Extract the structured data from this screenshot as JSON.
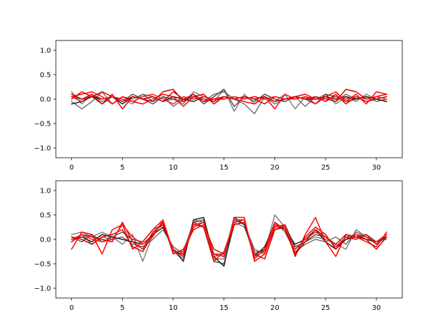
{
  "chart_data": [
    {
      "type": "line",
      "x": [
        0,
        1,
        2,
        3,
        4,
        5,
        6,
        7,
        8,
        9,
        10,
        11,
        12,
        13,
        14,
        15,
        16,
        17,
        18,
        19,
        20,
        21,
        22,
        23,
        24,
        25,
        26,
        27,
        28,
        29,
        30,
        31
      ],
      "xlim": [
        -1.55,
        32.55
      ],
      "ylim": [
        -1.2,
        1.2
      ],
      "xticks": [
        0,
        5,
        10,
        15,
        20,
        25,
        30
      ],
      "yticks": [
        -1.0,
        -0.5,
        0.0,
        0.5,
        1.0
      ],
      "xtick_labels": [
        "0",
        "5",
        "10",
        "15",
        "20",
        "25",
        "30"
      ],
      "ytick_labels": [
        "−1.0",
        "−0.5",
        "0.0",
        "0.5",
        "1.0"
      ],
      "grid": false,
      "series": [
        {
          "color": "#808080",
          "values": [
            0.15,
            -0.1,
            0.1,
            -0.05,
            0.05,
            0.0,
            -0.1,
            0.1,
            0.05,
            -0.05,
            0.0,
            -0.1,
            0.15,
            0.05,
            -0.05,
            0.2,
            -0.25,
            0.1,
            -0.1,
            0.05,
            -0.05,
            0.1,
            -0.2,
            0.05,
            0.0,
            0.1,
            -0.1,
            0.05,
            -0.05,
            0.1,
            0.0,
            0.05
          ]
        },
        {
          "color": "#707070",
          "values": [
            -0.05,
            -0.2,
            -0.05,
            0.15,
            -0.1,
            0.05,
            0.0,
            0.1,
            -0.05,
            0.05,
            -0.15,
            0.0,
            0.05,
            -0.05,
            0.1,
            0.15,
            0.0,
            -0.1,
            -0.3,
            0.05,
            -0.1,
            0.0,
            0.05,
            -0.15,
            0.05,
            0.0,
            -0.05,
            0.1,
            0.0,
            0.05,
            -0.05,
            0.0
          ]
        },
        {
          "color": "#505050",
          "values": [
            0.05,
            0.0,
            0.1,
            -0.1,
            0.05,
            -0.05,
            0.1,
            0.0,
            -0.1,
            0.05,
            0.0,
            -0.05,
            0.1,
            -0.1,
            0.05,
            0.2,
            -0.15,
            0.05,
            -0.05,
            0.1,
            0.0,
            -0.05,
            0.05,
            0.0,
            -0.1,
            0.1,
            0.05,
            -0.05,
            0.0,
            0.05,
            0.0,
            -0.05
          ]
        },
        {
          "color": "#202020",
          "values": [
            -0.1,
            -0.05,
            0.05,
            0.0,
            0.05,
            -0.1,
            0.05,
            0.0,
            0.05,
            -0.05,
            0.05,
            0.0,
            -0.05,
            0.05,
            0.0,
            0.0,
            0.05,
            0.0,
            0.05,
            0.0,
            0.05,
            0.0,
            0.05,
            0.0,
            0.0,
            0.05,
            0.0,
            0.05,
            0.0,
            0.05,
            0.0,
            -0.05
          ]
        },
        {
          "color": "#ff0000",
          "values": [
            0.05,
            0.1,
            0.15,
            0.05,
            -0.1,
            0.05,
            -0.05,
            -0.1,
            0.0,
            0.1,
            0.05,
            -0.15,
            0.05,
            0.0,
            -0.05,
            0.05,
            0.0,
            -0.05,
            -0.1,
            0.05,
            -0.2,
            0.1,
            0.0,
            0.05,
            -0.1,
            0.05,
            0.15,
            -0.05,
            0.1,
            -0.1,
            0.15,
            0.1
          ]
        },
        {
          "color": "#e00000",
          "values": [
            0.0,
            0.15,
            0.05,
            -0.1,
            0.1,
            -0.2,
            0.05,
            0.0,
            0.05,
            -0.05,
            0.15,
            0.0,
            0.1,
            -0.05,
            0.0,
            0.05,
            0.0,
            0.05,
            0.0,
            -0.1,
            0.05,
            0.0,
            0.05,
            0.1,
            0.0,
            0.05,
            -0.05,
            0.2,
            0.15,
            0.0,
            0.05,
            0.1
          ]
        },
        {
          "color": "#d00000",
          "values": [
            0.1,
            0.0,
            0.05,
            0.15,
            0.05,
            -0.05,
            0.05,
            0.0,
            -0.05,
            0.15,
            0.2,
            -0.05,
            0.05,
            0.1,
            -0.1,
            0.05,
            0.0,
            0.05,
            0.0,
            0.05,
            -0.05,
            0.0,
            0.05,
            0.0,
            0.05,
            -0.05,
            0.1,
            -0.1,
            0.05,
            -0.05,
            0.0,
            0.05
          ]
        },
        {
          "color": "#ff1a1a",
          "values": [
            0.05,
            -0.05,
            0.1,
            0.0,
            0.05,
            0.0,
            -0.05,
            0.05,
            0.1,
            0.0,
            -0.1,
            0.05,
            0.0,
            0.05,
            0.0,
            0.0,
            0.05,
            0.0,
            0.05,
            0.0,
            0.05,
            0.0,
            0.0,
            0.05,
            0.0,
            0.0,
            0.05,
            0.0,
            0.05,
            0.0,
            0.05,
            0.0
          ]
        }
      ]
    },
    {
      "type": "line",
      "x": [
        0,
        1,
        2,
        3,
        4,
        5,
        6,
        7,
        8,
        9,
        10,
        11,
        12,
        13,
        14,
        15,
        16,
        17,
        18,
        19,
        20,
        21,
        22,
        23,
        24,
        25,
        26,
        27,
        28,
        29,
        30,
        31
      ],
      "xlim": [
        -1.55,
        32.55
      ],
      "ylim": [
        -1.2,
        1.2
      ],
      "xticks": [
        0,
        5,
        10,
        15,
        20,
        25,
        30
      ],
      "yticks": [
        -1.0,
        -0.5,
        0.0,
        0.5,
        1.0
      ],
      "xtick_labels": [
        "0",
        "5",
        "10",
        "15",
        "20",
        "25",
        "30"
      ],
      "ytick_labels": [
        "−1.0",
        "−0.5",
        "0.0",
        "0.5",
        "1.0"
      ],
      "grid": false,
      "series": [
        {
          "color": "#808080",
          "values": [
            0.1,
            0.15,
            0.05,
            0.15,
            0.05,
            -0.1,
            0.1,
            -0.45,
            0.1,
            0.25,
            -0.2,
            -0.4,
            0.4,
            0.35,
            -0.4,
            -0.4,
            0.35,
            0.25,
            -0.25,
            -0.25,
            0.5,
            0.25,
            -0.2,
            -0.05,
            0.05,
            0.0,
            -0.1,
            -0.2,
            0.2,
            0.05,
            -0.05,
            0.0
          ]
        },
        {
          "color": "#707070",
          "values": [
            -0.05,
            0.1,
            -0.1,
            0.05,
            0.0,
            0.05,
            -0.1,
            -0.15,
            0.0,
            0.2,
            -0.15,
            -0.3,
            0.3,
            0.25,
            -0.3,
            -0.3,
            0.4,
            0.3,
            -0.2,
            -0.3,
            0.35,
            0.15,
            -0.25,
            -0.1,
            0.0,
            -0.05,
            0.05,
            -0.1,
            0.15,
            0.05,
            -0.1,
            0.05
          ]
        },
        {
          "color": "#505050",
          "values": [
            0.05,
            -0.05,
            0.1,
            -0.05,
            0.05,
            0.15,
            0.0,
            -0.05,
            0.2,
            0.3,
            -0.25,
            -0.25,
            0.35,
            0.4,
            -0.45,
            -0.5,
            0.3,
            0.35,
            -0.3,
            -0.2,
            0.2,
            0.3,
            -0.15,
            -0.05,
            0.1,
            0.05,
            -0.15,
            0.0,
            0.05,
            0.1,
            -0.05,
            0.1
          ]
        },
        {
          "color": "#202020",
          "values": [
            0.0,
            0.05,
            -0.05,
            0.1,
            0.05,
            0.0,
            -0.05,
            -0.1,
            0.1,
            0.25,
            -0.2,
            -0.45,
            0.4,
            0.45,
            -0.35,
            -0.55,
            0.45,
            0.3,
            -0.35,
            -0.15,
            0.3,
            0.2,
            -0.1,
            0.0,
            0.2,
            -0.05,
            -0.2,
            0.0,
            0.1,
            0.0,
            -0.05,
            0.05
          ]
        },
        {
          "color": "#ff0000",
          "values": [
            -0.2,
            0.15,
            0.1,
            -0.3,
            0.2,
            0.3,
            -0.2,
            -0.05,
            0.2,
            0.4,
            -0.25,
            -0.3,
            0.25,
            0.35,
            -0.3,
            -0.35,
            0.45,
            0.45,
            -0.45,
            -0.3,
            0.25,
            0.3,
            -0.35,
            0.1,
            0.45,
            -0.05,
            -0.35,
            0.1,
            0.05,
            -0.05,
            -0.15,
            0.15
          ]
        },
        {
          "color": "#e00000",
          "values": [
            -0.05,
            0.1,
            0.05,
            0.0,
            -0.05,
            0.35,
            -0.05,
            -0.2,
            0.15,
            0.3,
            -0.2,
            -0.35,
            0.35,
            0.25,
            -0.45,
            -0.25,
            0.35,
            0.4,
            -0.4,
            -0.2,
            0.35,
            0.2,
            -0.3,
            0.05,
            0.25,
            0.1,
            -0.2,
            0.05,
            0.0,
            0.1,
            -0.1,
            0.1
          ]
        },
        {
          "color": "#d00000",
          "values": [
            0.05,
            0.0,
            -0.1,
            0.05,
            0.1,
            0.2,
            -0.15,
            -0.25,
            0.1,
            0.35,
            -0.3,
            -0.2,
            0.2,
            0.3,
            -0.2,
            -0.3,
            0.3,
            0.35,
            -0.3,
            -0.4,
            0.2,
            0.25,
            -0.3,
            -0.05,
            0.2,
            0.05,
            -0.1,
            0.1,
            0.05,
            0.0,
            -0.2,
            0.05
          ]
        },
        {
          "color": "#ff1a1a",
          "values": [
            0.0,
            0.1,
            0.0,
            -0.05,
            0.0,
            0.3,
            0.05,
            -0.1,
            0.05,
            0.4,
            -0.25,
            -0.25,
            0.3,
            0.35,
            -0.35,
            -0.3,
            0.4,
            0.4,
            -0.35,
            -0.25,
            0.3,
            0.25,
            -0.2,
            0.0,
            0.15,
            0.05,
            -0.15,
            0.05,
            0.1,
            0.05,
            -0.05,
            0.1
          ]
        }
      ]
    }
  ]
}
